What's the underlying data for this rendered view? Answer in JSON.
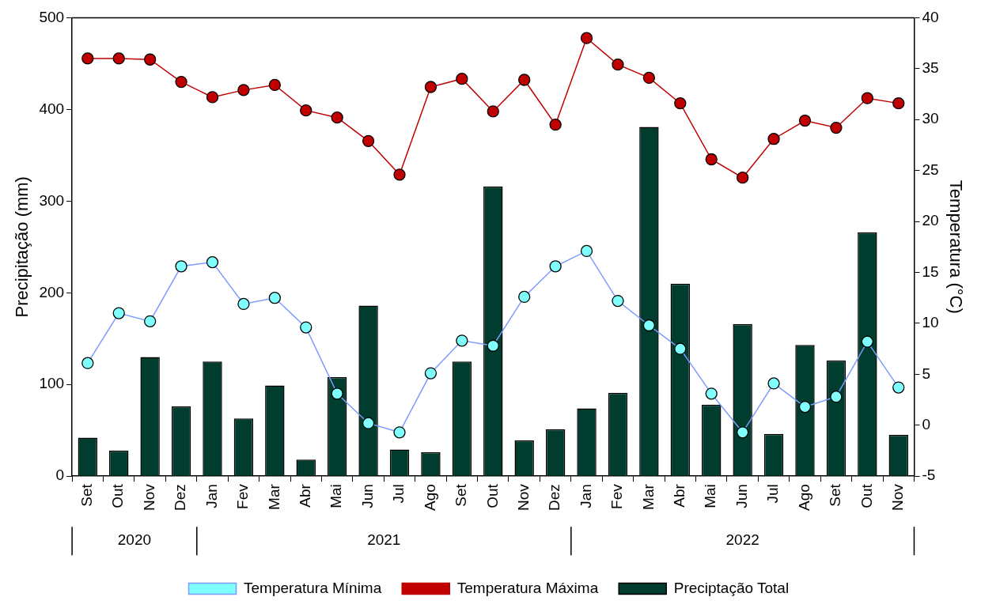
{
  "chart_data": {
    "type": "bar",
    "ylabel": "Precipitação (mm)",
    "y2label": "Temperatura (°C)",
    "categories": [
      "Set",
      "Out",
      "Nov",
      "Dez",
      "Jan",
      "Fev",
      "Mar",
      "Abr",
      "Mai",
      "Jun",
      "Jul",
      "Ago",
      "Set",
      "Out",
      "Nov",
      "Dez",
      "Jan",
      "Fev",
      "Mar",
      "Abr",
      "Mai",
      "Jun",
      "Jul",
      "Ago",
      "Set",
      "Out",
      "Nov"
    ],
    "series": [
      {
        "name": "Preciptação Total",
        "color": "#003d2e",
        "values": [
          42,
          28,
          130,
          76,
          125,
          63,
          99,
          18,
          108,
          186,
          29,
          26,
          125,
          316,
          39,
          51,
          74,
          91,
          381,
          210,
          78,
          166,
          46,
          143,
          126,
          266,
          45
        ]
      },
      {
        "name": "Temperatura Mínima",
        "type": "line",
        "axis": "y2",
        "color": "#80ffff",
        "marker": "circle",
        "values": [
          6.1,
          11.0,
          10.2,
          15.6,
          16.0,
          11.9,
          12.5,
          9.6,
          3.1,
          0.2,
          -0.7,
          5.1,
          8.3,
          7.8,
          12.6,
          15.6,
          17.1,
          12.2,
          9.8,
          7.5,
          3.1,
          -0.7,
          4.1,
          1.8,
          2.8,
          8.2,
          3.7
        ]
      },
      {
        "name": "Temperatura Máxima",
        "type": "line",
        "axis": "y2",
        "color": "#c00000",
        "marker": "circle",
        "values": [
          36.0,
          36.0,
          35.9,
          33.7,
          32.2,
          32.9,
          33.4,
          30.9,
          30.2,
          27.9,
          24.6,
          33.2,
          34.0,
          30.8,
          33.9,
          29.5,
          38.0,
          35.4,
          34.1,
          31.6,
          26.1,
          24.3,
          28.1,
          29.9,
          29.2,
          32.1,
          31.6
        ]
      }
    ],
    "ylim": [
      0,
      500
    ],
    "yticks": [
      0,
      100,
      200,
      300,
      400,
      500
    ],
    "y2lim": [
      -5,
      40
    ],
    "y2ticks": [
      -5,
      0,
      5,
      10,
      15,
      20,
      25,
      30,
      35,
      40
    ],
    "annotations": [
      "2020",
      "2021",
      "2022"
    ],
    "legend": "bottom",
    "grid": false
  }
}
